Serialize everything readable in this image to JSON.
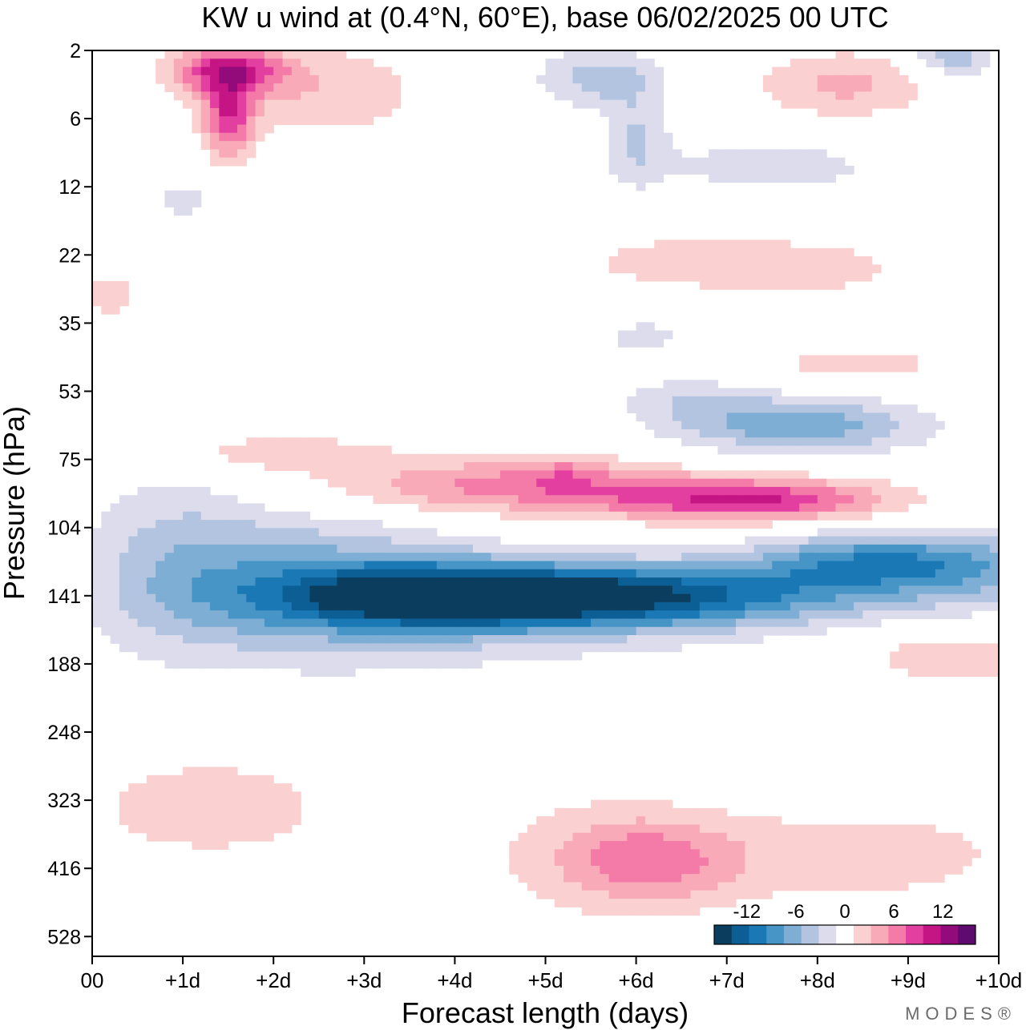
{
  "chart_data": {
    "type": "heatmap",
    "title": "KW u wind at (0.4°N, 60°E),  base 06/02/2025  00 UTC",
    "xlabel": "Forecast length (days)",
    "ylabel": "Pressure (hPa)",
    "x_ticks": [
      "00",
      "+1d",
      "+2d",
      "+3d",
      "+4d",
      "+5d",
      "+6d",
      "+7d",
      "+8d",
      "+9d",
      "+10d"
    ],
    "y_ticks": [
      "2",
      "6",
      "12",
      "22",
      "35",
      "53",
      "75",
      "104",
      "141",
      "188",
      "248",
      "323",
      "416",
      "528"
    ],
    "xlim": [
      0,
      10
    ],
    "ylim_levels": [
      0,
      13
    ],
    "y_scale": "index of printed pressure levels, top = 2 hPa",
    "legend_position": "bottom-right",
    "colorbar": {
      "labels": [
        {
          "value": -12,
          "text": "-12"
        },
        {
          "value": -6,
          "text": "-6"
        },
        {
          "value": 0,
          "text": "0"
        },
        {
          "value": 6,
          "text": "6"
        },
        {
          "value": 12,
          "text": "12"
        }
      ],
      "bins": [
        {
          "min": -16,
          "max": -14,
          "color": "#0b3d5e"
        },
        {
          "min": -14,
          "max": -12,
          "color": "#0c5f94"
        },
        {
          "min": -12,
          "max": -10,
          "color": "#1a78b5"
        },
        {
          "min": -10,
          "max": -8,
          "color": "#4795c7"
        },
        {
          "min": -8,
          "max": -6,
          "color": "#7eaed4"
        },
        {
          "min": -6,
          "max": -4,
          "color": "#b2c4df"
        },
        {
          "min": -4,
          "max": -2,
          "color": "#dcdcec"
        },
        {
          "min": -2,
          "max": 2,
          "color": "#ffffff"
        },
        {
          "min": 2,
          "max": 4,
          "color": "#fbd0d0"
        },
        {
          "min": 4,
          "max": 6,
          "color": "#f8aab8"
        },
        {
          "min": 6,
          "max": 8,
          "color": "#f47aa7"
        },
        {
          "min": 8,
          "max": 10,
          "color": "#e33fa0"
        },
        {
          "min": 10,
          "max": 12,
          "color": "#c51585"
        },
        {
          "min": 12,
          "max": 14,
          "color": "#930a7b"
        },
        {
          "min": 14,
          "max": 16,
          "color": "#5e0a6f"
        }
      ]
    },
    "field": {
      "baseline": 0,
      "units": "m/s",
      "features": [
        {
          "x": 5.7,
          "y": 8.0,
          "sx": 1.9,
          "sy": 0.33,
          "amp": -13.5
        },
        {
          "x": 3.8,
          "y": 8.0,
          "sx": 1.1,
          "sy": 0.3,
          "amp": -7.5
        },
        {
          "x": 8.5,
          "y": 7.5,
          "sx": 0.9,
          "sy": 0.3,
          "amp": -8.0
        },
        {
          "x": 9.9,
          "y": 7.6,
          "sx": 0.9,
          "sy": 0.4,
          "amp": -5.0
        },
        {
          "x": 2.4,
          "y": 7.8,
          "sx": 1.3,
          "sy": 0.75,
          "amp": -6.0
        },
        {
          "x": 0.9,
          "y": 7.4,
          "sx": 0.7,
          "sy": 1.0,
          "amp": -3.2
        },
        {
          "x": 4.2,
          "y": 8.3,
          "sx": 2.0,
          "sy": 0.55,
          "amp": -3.0
        },
        {
          "x": 7.8,
          "y": 5.5,
          "sx": 0.95,
          "sy": 0.3,
          "amp": -7.6
        },
        {
          "x": 6.6,
          "y": 5.1,
          "sx": 0.55,
          "sy": 0.25,
          "amp": -3.0
        },
        {
          "x": 6.1,
          "y": 4.2,
          "sx": 0.35,
          "sy": 0.18,
          "amp": -3.0
        },
        {
          "x": 4.6,
          "y": 6.4,
          "sx": 1.5,
          "sy": 0.3,
          "amp": 7.0
        },
        {
          "x": 7.3,
          "y": 6.6,
          "sx": 1.1,
          "sy": 0.22,
          "amp": 9.5
        },
        {
          "x": 5.2,
          "y": 6.2,
          "sx": 0.3,
          "sy": 0.18,
          "amp": 2.5
        },
        {
          "x": 2.0,
          "y": 5.9,
          "sx": 0.9,
          "sy": 0.2,
          "amp": 3.5
        },
        {
          "x": 6.2,
          "y": 11.9,
          "sx": 0.7,
          "sy": 0.45,
          "amp": 5.0
        },
        {
          "x": 5.5,
          "y": 11.8,
          "sx": 0.9,
          "sy": 0.65,
          "amp": 2.6
        },
        {
          "x": 8.5,
          "y": 11.8,
          "sx": 1.4,
          "sy": 0.55,
          "amp": 3.0
        },
        {
          "x": 1.3,
          "y": 11.1,
          "sx": 1.0,
          "sy": 0.55,
          "amp": 3.4
        },
        {
          "x": 9.5,
          "y": 8.9,
          "sx": 0.8,
          "sy": 0.3,
          "amp": 3.4
        },
        {
          "x": 1.5,
          "y": 0.3,
          "sx": 0.45,
          "sy": 0.25,
          "amp": 10.0
        },
        {
          "x": 1.5,
          "y": 1.0,
          "sx": 0.2,
          "sy": 0.4,
          "amp": 9.0
        },
        {
          "x": 2.6,
          "y": 0.6,
          "sx": 0.8,
          "sy": 0.5,
          "amp": 3.5
        },
        {
          "x": 8.3,
          "y": 0.5,
          "sx": 0.7,
          "sy": 0.35,
          "amp": 4.5
        },
        {
          "x": 5.6,
          "y": 0.4,
          "sx": 0.5,
          "sy": 0.3,
          "amp": -5.0
        },
        {
          "x": 6.0,
          "y": 1.3,
          "sx": 0.25,
          "sy": 0.5,
          "amp": -4.0
        },
        {
          "x": 9.5,
          "y": 0.1,
          "sx": 0.3,
          "sy": 0.2,
          "amp": -6.0
        },
        {
          "x": 7.5,
          "y": 1.7,
          "sx": 0.9,
          "sy": 0.3,
          "amp": -3.2
        },
        {
          "x": 6.5,
          "y": 3.1,
          "sx": 0.9,
          "sy": 0.3,
          "amp": 3.0
        },
        {
          "x": 8.0,
          "y": 3.2,
          "sx": 0.8,
          "sy": 0.3,
          "amp": 2.6
        },
        {
          "x": 8.4,
          "y": 4.6,
          "sx": 1.0,
          "sy": 0.25,
          "amp": 2.6
        },
        {
          "x": 0.2,
          "y": 3.6,
          "sx": 0.3,
          "sy": 0.3,
          "amp": 2.6
        },
        {
          "x": 1.0,
          "y": 2.2,
          "sx": 0.3,
          "sy": 0.2,
          "amp": -2.8
        }
      ]
    }
  },
  "branding": {
    "text": "MODES®"
  }
}
